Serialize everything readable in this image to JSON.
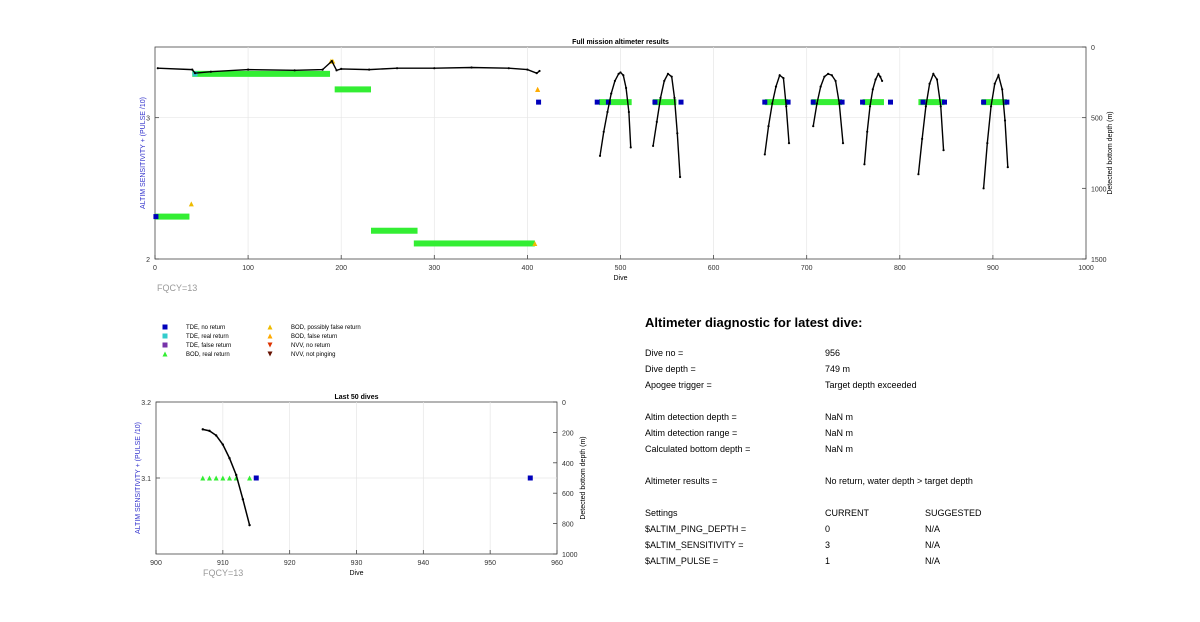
{
  "chart_data": [
    {
      "type": "scatter",
      "title": "Full mission altimeter results",
      "xlabel": "Dive",
      "ylabel_left": "ALTIM SENSITIVITY + (PULSE /10)",
      "ylabel_right": "Detected bottom depth (m)",
      "xlim": [
        0,
        1000
      ],
      "ylim_left": [
        2,
        3.5
      ],
      "ylim_right": [
        1500,
        0
      ],
      "x_ticks": [
        "0",
        "100",
        "200",
        "300",
        "400",
        "500",
        "600",
        "700",
        "800",
        "900",
        "1000"
      ],
      "y_left_ticks": [
        "2",
        "3"
      ],
      "y_right_ticks": [
        "0",
        "500",
        "1000",
        "1500"
      ],
      "grid": true,
      "annotation": "FQCY=13",
      "series": [
        {
          "name": "TDE, no return",
          "color": "#0000bb",
          "points": [
            [
              1,
              2.3
            ],
            [
              412,
              3.11
            ],
            [
              475,
              3.11
            ],
            [
              487,
              3.11
            ],
            [
              537,
              3.11
            ],
            [
              565,
              3.11
            ],
            [
              655,
              3.11
            ],
            [
              680,
              3.11
            ],
            [
              707,
              3.11
            ],
            [
              738,
              3.11
            ],
            [
              760,
              3.11
            ],
            [
              790,
              3.11
            ],
            [
              825,
              3.11
            ],
            [
              848,
              3.11
            ],
            [
              890,
              3.11
            ],
            [
              915,
              3.11
            ]
          ]
        },
        {
          "name": "TDE, real return",
          "color": "#33cccc",
          "points": [
            [
              43,
              3.31
            ]
          ]
        },
        {
          "name": "BOD, real return",
          "color": "#33ee33",
          "bands": [
            {
              "x0": 0,
              "x1": 37,
              "y": 2.3
            },
            {
              "x0": 40,
              "x1": 188,
              "y": 3.31
            },
            {
              "x0": 193,
              "x1": 232,
              "y": 3.2
            },
            {
              "x0": 232,
              "x1": 282,
              "y": 2.2
            },
            {
              "x0": 278,
              "x1": 408,
              "y": 2.11
            },
            {
              "x0": 477,
              "x1": 512,
              "y": 3.11
            },
            {
              "x0": 535,
              "x1": 560,
              "y": 3.11
            },
            {
              "x0": 655,
              "x1": 680,
              "y": 3.11
            },
            {
              "x0": 705,
              "x1": 738,
              "y": 3.11
            },
            {
              "x0": 760,
              "x1": 783,
              "y": 3.11
            },
            {
              "x0": 820,
              "x1": 848,
              "y": 3.11
            },
            {
              "x0": 888,
              "x1": 915,
              "y": 3.11
            }
          ]
        },
        {
          "name": "BOD, possibly false return",
          "color": "#eebb00",
          "points": [
            [
              39,
              2.39
            ],
            [
              189,
              3.4
            ],
            [
              191,
              3.4
            ],
            [
              408,
              2.11
            ],
            [
              411,
              3.2
            ]
          ]
        },
        {
          "name": "BOD, false return",
          "color": "#ffaa00",
          "points": [
            [
              411,
              3.2
            ]
          ]
        }
      ],
      "depth_segments": [
        {
          "x": [
            3,
            40,
            43,
            60,
            100,
            150,
            180,
            190,
            195,
            200,
            230,
            260,
            300,
            340,
            380,
            400,
            410,
            413
          ],
          "depth": [
            150,
            160,
            185,
            175,
            160,
            165,
            160,
            100,
            165,
            155,
            160,
            150,
            150,
            145,
            150,
            160,
            185,
            170
          ]
        },
        {
          "x": [
            478,
            482,
            486,
            490,
            494,
            498,
            500,
            503,
            506,
            509,
            511
          ],
          "depth": [
            770,
            600,
            460,
            330,
            240,
            190,
            180,
            200,
            290,
            460,
            710
          ]
        },
        {
          "x": [
            535,
            539,
            543,
            547,
            551,
            555,
            558,
            561,
            564
          ],
          "depth": [
            700,
            530,
            360,
            240,
            190,
            210,
            360,
            610,
            920
          ]
        },
        {
          "x": [
            655,
            659,
            663,
            667,
            671,
            675,
            678,
            681
          ],
          "depth": [
            760,
            560,
            400,
            280,
            200,
            220,
            420,
            680
          ]
        },
        {
          "x": [
            707,
            711,
            715,
            719,
            723,
            727,
            731,
            735,
            739
          ],
          "depth": [
            560,
            400,
            280,
            210,
            190,
            200,
            240,
            400,
            680
          ]
        },
        {
          "x": [
            762,
            765,
            768,
            771,
            774,
            777,
            779,
            781
          ],
          "depth": [
            830,
            600,
            420,
            300,
            230,
            190,
            210,
            240
          ]
        },
        {
          "x": [
            820,
            824,
            828,
            832,
            836,
            840,
            844,
            847
          ],
          "depth": [
            900,
            650,
            420,
            260,
            190,
            230,
            420,
            730
          ]
        },
        {
          "x": [
            890,
            894,
            898,
            902,
            906,
            910,
            913,
            916
          ],
          "depth": [
            1000,
            680,
            420,
            260,
            200,
            300,
            520,
            850
          ]
        }
      ]
    },
    {
      "type": "scatter",
      "title": "Last 50 dives",
      "xlabel": "Dive",
      "ylabel_left": "ALTIM SENSITIVITY + (PULSE /10)",
      "ylabel_right": "Detected bottom depth (m)",
      "xlim": [
        900,
        960
      ],
      "ylim_left": [
        3.0,
        3.2
      ],
      "ylim_right": [
        1000,
        0
      ],
      "x_ticks": [
        "900",
        "910",
        "920",
        "930",
        "940",
        "950",
        "960"
      ],
      "y_left_ticks": [
        "3.1",
        "3.2"
      ],
      "y_right_ticks": [
        "0",
        "200",
        "400",
        "600",
        "800",
        "1000"
      ],
      "grid": true,
      "annotation": "FQCY=13",
      "series": [
        {
          "name": "BOD, real return",
          "color": "#33ee33",
          "points": [
            [
              907,
              3.1
            ],
            [
              908,
              3.1
            ],
            [
              909,
              3.1
            ],
            [
              910,
              3.1
            ],
            [
              911,
              3.1
            ],
            [
              912,
              3.1
            ],
            [
              914,
              3.1
            ]
          ]
        },
        {
          "name": "TDE, no return",
          "color": "#0000bb",
          "points": [
            [
              915,
              3.1
            ],
            [
              956,
              3.1
            ]
          ]
        }
      ],
      "depth_segments": [
        {
          "x": [
            907,
            908,
            909,
            910,
            911,
            912,
            913,
            914
          ],
          "depth": [
            180,
            190,
            220,
            280,
            370,
            480,
            640,
            810
          ]
        }
      ]
    }
  ],
  "legend": [
    {
      "label": "TDE, no return",
      "color": "#0000bb",
      "shape": "square"
    },
    {
      "label": "TDE, real return",
      "color": "#33cccc",
      "shape": "square"
    },
    {
      "label": "TDE, false return",
      "color": "#7733aa",
      "shape": "square"
    },
    {
      "label": "BOD, real return",
      "color": "#33ee33",
      "shape": "triangle-up"
    },
    {
      "label": "BOD, possibly false return",
      "color": "#eebb00",
      "shape": "triangle-up"
    },
    {
      "label": "BOD, false return",
      "color": "#ffaa00",
      "shape": "triangle-up"
    },
    {
      "label": "NVV, no return",
      "color": "#dd3300",
      "shape": "triangle-down"
    },
    {
      "label": "NVV, not pinging",
      "color": "#661100",
      "shape": "triangle-down"
    }
  ],
  "diagnostic": {
    "heading": "Altimeter diagnostic for latest dive:",
    "rows": [
      {
        "label": "Dive no =",
        "value": "956"
      },
      {
        "label": "Dive depth =",
        "value": "749 m"
      },
      {
        "label": "Apogee trigger =",
        "value": "Target depth exceeded"
      },
      {
        "label": "Altim detection depth =",
        "value": "NaN m"
      },
      {
        "label": "Altim detection range =",
        "value": "NaN m"
      },
      {
        "label": "Calculated bottom depth =",
        "value": "NaN m"
      },
      {
        "label": "Altimeter results =",
        "value": "No return, water depth > target depth"
      }
    ],
    "settings_header": {
      "label": "Settings",
      "current": "CURRENT",
      "suggested": "SUGGESTED"
    },
    "settings": [
      {
        "label": "$ALTIM_PING_DEPTH =",
        "current": "0",
        "suggested": "N/A"
      },
      {
        "label": "$ALTIM_SENSITIVITY =",
        "current": "3",
        "suggested": "N/A"
      },
      {
        "label": "$ALTIM_PULSE =",
        "current": "1",
        "suggested": "N/A"
      }
    ]
  }
}
